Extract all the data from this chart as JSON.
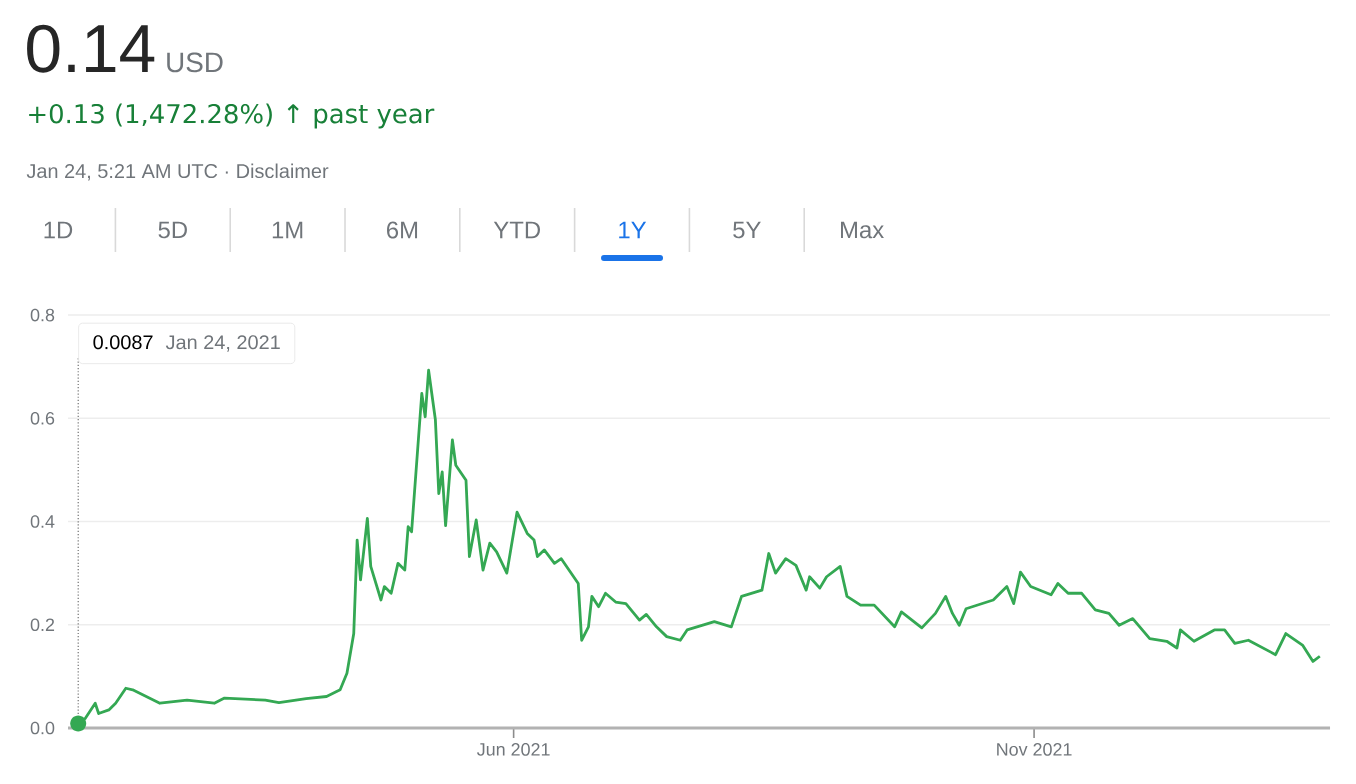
{
  "chart_data": {
    "type": "line",
    "title": "0.14",
    "subtitle": "+0.13 (1,472.28%) ↑ past year",
    "annotations": [
      "USD",
      "Jan 24, 5:21 AM UTC · Disclaimer",
      "1D",
      "5D",
      "1M",
      "6M",
      "YTD",
      "1Y",
      "5Y",
      "Max",
      {
        "text": "0.0087",
        "x": "2021-01-24",
        "y": 0.0087
      },
      "Jan 24, 2021"
    ],
    "x": [
      "2021-01-24",
      "2021-01-26",
      "2021-01-29",
      "2021-01-30",
      "2021-02-02",
      "2021-02-04",
      "2021-02-07",
      "2021-02-09",
      "2021-02-17",
      "2021-02-25",
      "2021-03-05",
      "2021-03-08",
      "2021-03-20",
      "2021-03-24",
      "2021-04-01",
      "2021-04-07",
      "2021-04-11",
      "2021-04-13",
      "2021-04-15",
      "2021-04-16",
      "2021-04-17",
      "2021-04-19",
      "2021-04-20",
      "2021-04-23",
      "2021-04-24",
      "2021-04-26",
      "2021-04-28",
      "2021-04-30",
      "2021-05-01",
      "2021-05-02",
      "2021-05-05",
      "2021-05-06",
      "2021-05-07",
      "2021-05-09",
      "2021-05-10",
      "2021-05-11",
      "2021-05-12",
      "2021-05-14",
      "2021-05-15",
      "2021-05-18",
      "2021-05-19",
      "2021-05-21",
      "2021-05-23",
      "2021-05-25",
      "2021-05-27",
      "2021-05-30",
      "2021-06-02",
      "2021-06-05",
      "2021-06-07",
      "2021-06-08",
      "2021-06-10",
      "2021-06-13",
      "2021-06-15",
      "2021-06-20",
      "2021-06-21",
      "2021-06-23",
      "2021-06-24",
      "2021-06-26",
      "2021-06-28",
      "2021-07-01",
      "2021-07-04",
      "2021-07-08",
      "2021-07-10",
      "2021-07-13",
      "2021-07-16",
      "2021-07-20",
      "2021-07-22",
      "2021-07-30",
      "2021-08-04",
      "2021-08-07",
      "2021-08-13",
      "2021-08-15",
      "2021-08-17",
      "2021-08-20",
      "2021-08-23",
      "2021-08-26",
      "2021-08-27",
      "2021-08-30",
      "2021-09-01",
      "2021-09-05",
      "2021-09-07",
      "2021-09-11",
      "2021-09-15",
      "2021-09-21",
      "2021-09-23",
      "2021-09-29",
      "2021-10-03",
      "2021-10-06",
      "2021-10-08",
      "2021-10-10",
      "2021-10-12",
      "2021-10-20",
      "2021-10-24",
      "2021-10-26",
      "2021-10-28",
      "2021-10-31",
      "2021-11-06",
      "2021-11-08",
      "2021-11-11",
      "2021-11-15",
      "2021-11-19",
      "2021-11-23",
      "2021-11-26",
      "2021-11-30",
      "2021-12-05",
      "2021-12-10",
      "2021-12-13",
      "2021-12-14",
      "2021-12-18",
      "2021-12-24",
      "2021-12-27",
      "2021-12-30",
      "2022-01-03",
      "2022-01-11",
      "2022-01-14",
      "2022-01-19",
      "2022-01-22",
      "2022-01-24"
    ],
    "values": [
      0.0087,
      0.018,
      0.048,
      0.028,
      0.035,
      0.048,
      0.077,
      0.074,
      0.048,
      0.054,
      0.048,
      0.058,
      0.054,
      0.049,
      0.057,
      0.061,
      0.074,
      0.106,
      0.183,
      0.364,
      0.287,
      0.406,
      0.313,
      0.248,
      0.274,
      0.261,
      0.319,
      0.306,
      0.39,
      0.38,
      0.648,
      0.603,
      0.693,
      0.597,
      0.454,
      0.496,
      0.392,
      0.558,
      0.509,
      0.48,
      0.332,
      0.403,
      0.306,
      0.358,
      0.341,
      0.3,
      0.418,
      0.377,
      0.364,
      0.332,
      0.345,
      0.319,
      0.328,
      0.28,
      0.17,
      0.196,
      0.255,
      0.235,
      0.261,
      0.244,
      0.241,
      0.209,
      0.22,
      0.196,
      0.177,
      0.17,
      0.19,
      0.206,
      0.196,
      0.255,
      0.267,
      0.338,
      0.3,
      0.328,
      0.315,
      0.267,
      0.293,
      0.271,
      0.293,
      0.313,
      0.255,
      0.238,
      0.238,
      0.196,
      0.225,
      0.194,
      0.222,
      0.255,
      0.222,
      0.199,
      0.231,
      0.248,
      0.274,
      0.241,
      0.302,
      0.274,
      0.258,
      0.28,
      0.261,
      0.261,
      0.229,
      0.222,
      0.199,
      0.212,
      0.173,
      0.168,
      0.155,
      0.19,
      0.168,
      0.19,
      0.19,
      0.164,
      0.17,
      0.142,
      0.183,
      0.16,
      0.129,
      0.139
    ],
    "color": "#34a853",
    "xlim": [
      "2021-01-21",
      "2022-01-27"
    ],
    "xticks": [
      {
        "value": "2021-06-01",
        "label": "Jun 2021"
      },
      {
        "value": "2021-11-01",
        "label": "Nov 2021"
      }
    ],
    "ylim": [
      0,
      0.8
    ],
    "yticks": [
      {
        "value": 0,
        "label": "0.0"
      },
      0.2,
      0.4,
      0.6,
      0.8
    ],
    "grid": "y",
    "marker": "none",
    "line_style": "solid"
  }
}
